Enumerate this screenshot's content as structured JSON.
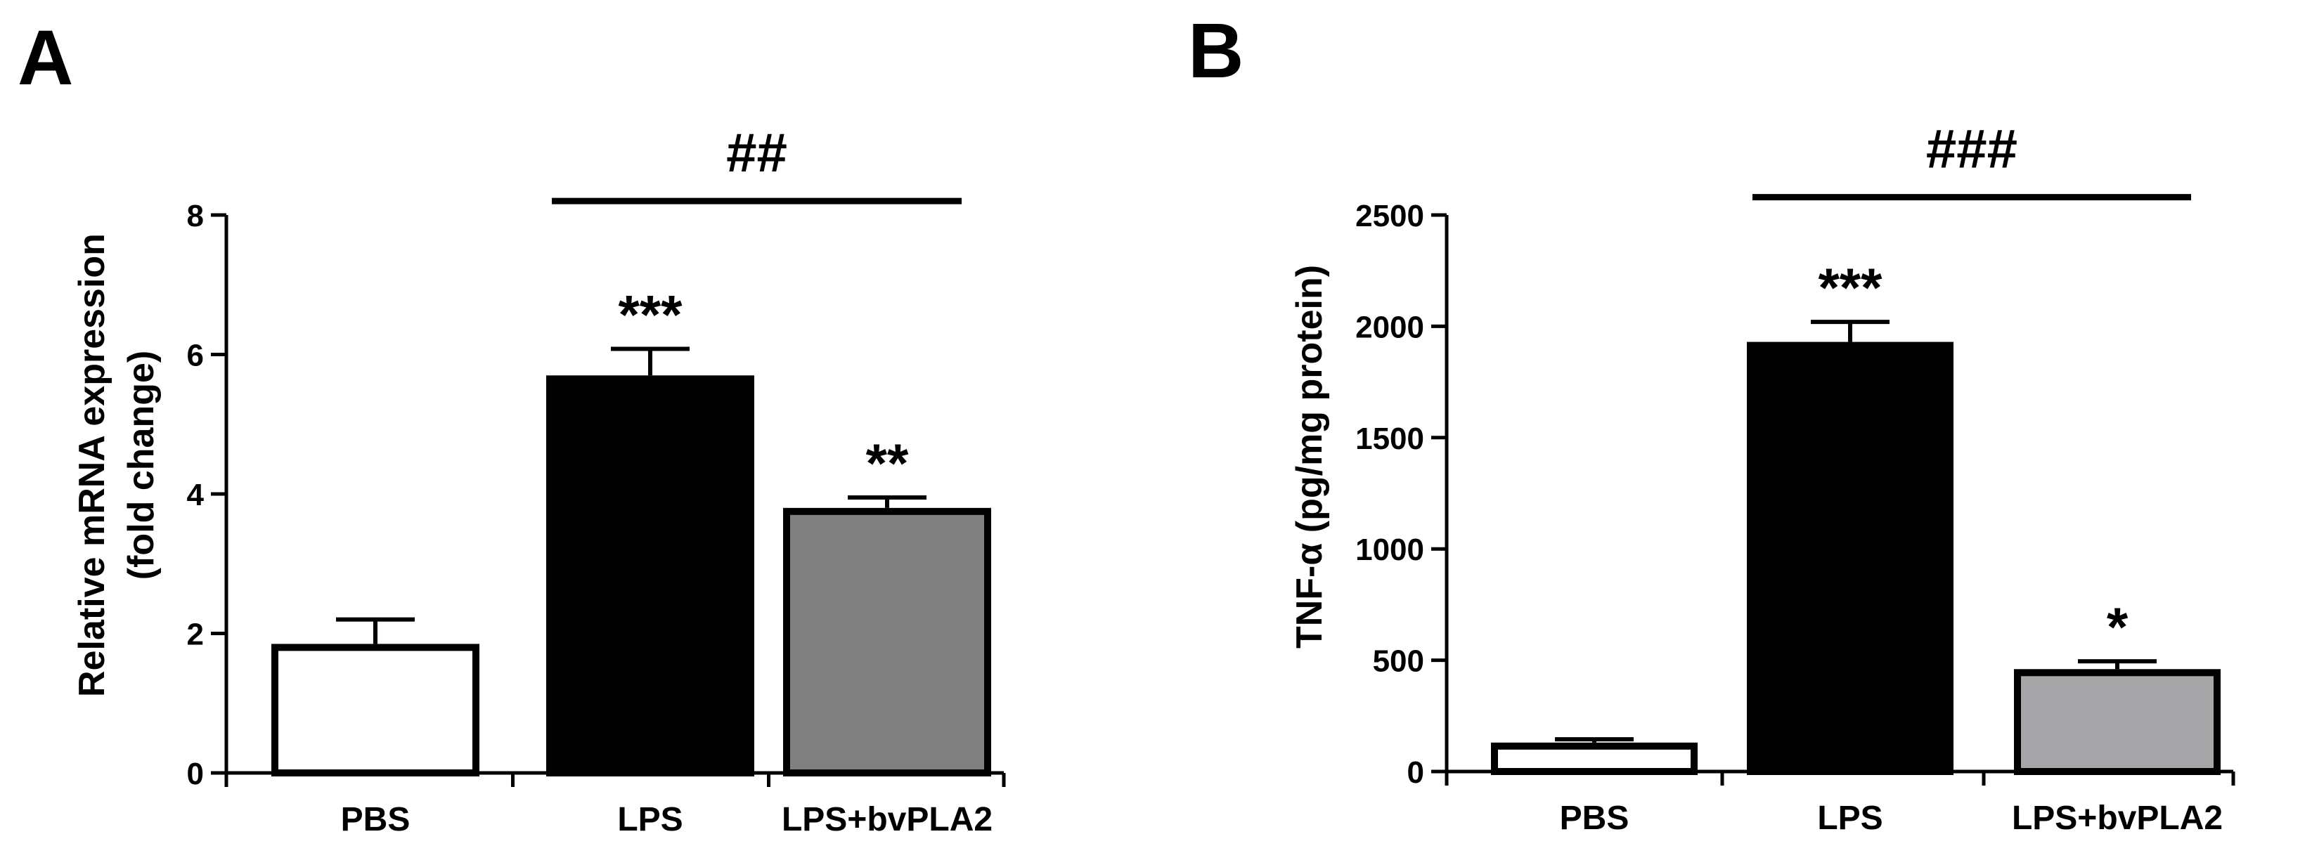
{
  "chart_data": [
    {
      "type": "bar",
      "panel_label": "A",
      "title": "",
      "xlabel": "",
      "ylabel_lines": [
        "Relative mRNA expression",
        "(fold change)"
      ],
      "ylim": [
        0,
        8
      ],
      "yticks": [
        0,
        2,
        4,
        6,
        8
      ],
      "ytick_labels": [
        "0",
        "2",
        "4",
        "6",
        "8"
      ],
      "grid": false,
      "categories": [
        "PBS",
        "LPS",
        "LPS+bvPLA2"
      ],
      "values": [
        1.85,
        5.7,
        3.8
      ],
      "errors": [
        0.35,
        0.38,
        0.15
      ],
      "bar_colors": [
        "#ffffff",
        "#000000",
        "#808080"
      ],
      "significance": [
        "",
        "***",
        "**"
      ],
      "comparison": {
        "from": 1,
        "to": 2,
        "label": "##",
        "y": 8.2
      }
    },
    {
      "type": "bar",
      "panel_label": "B",
      "title": "",
      "xlabel": "",
      "ylabel_lines": [
        "TNF-α (pg/mg protein)"
      ],
      "ylim": [
        0,
        2500
      ],
      "yticks": [
        0,
        500,
        1000,
        1500,
        2000,
        2500
      ],
      "ytick_labels": [
        "0",
        "500",
        "1000",
        "1500",
        "2000",
        "2500"
      ],
      "grid": false,
      "categories": [
        "PBS",
        "LPS",
        "LPS+bvPLA2"
      ],
      "values": [
        130,
        1930,
        460
      ],
      "errors": [
        15,
        90,
        35
      ],
      "bar_colors": [
        "#ffffff",
        "#000000",
        "#a6a6a8"
      ],
      "significance": [
        "",
        "***",
        "*"
      ],
      "comparison": {
        "from": 1,
        "to": 2,
        "label": "###",
        "y": 2580
      }
    }
  ]
}
